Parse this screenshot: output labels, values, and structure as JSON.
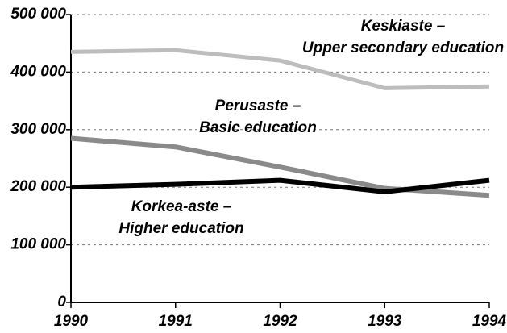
{
  "chart_data": {
    "type": "line",
    "x": [
      1990,
      1991,
      1992,
      1993,
      1994
    ],
    "xlim": [
      1990,
      1994
    ],
    "xticks": [
      1990,
      1991,
      1992,
      1993,
      1994
    ],
    "ylim": [
      0,
      500000
    ],
    "yticks": [
      0,
      {
        "value": 100000,
        "label": "100 000"
      },
      {
        "value": 200000,
        "label": "200 000"
      },
      {
        "value": 300000,
        "label": "300 000"
      },
      {
        "value": 400000,
        "label": "400 000"
      },
      {
        "value": 500000,
        "label": "500 000"
      }
    ],
    "grid": true,
    "series": [
      {
        "name": [
          "Keskiaste –",
          "Upper secondary education"
        ],
        "color": "#bdbdbd",
        "values": [
          435000,
          438000,
          420000,
          372000,
          375000
        ]
      },
      {
        "name": [
          "Perusaste –",
          "Basic education"
        ],
        "color": "#8a8a8a",
        "values": [
          285000,
          270000,
          235000,
          198000,
          186000
        ]
      },
      {
        "name": [
          "Korkea-aste –",
          "Higher education"
        ],
        "color": "#000000",
        "values": [
          200000,
          205000,
          212000,
          192000,
          212000
        ]
      }
    ]
  }
}
